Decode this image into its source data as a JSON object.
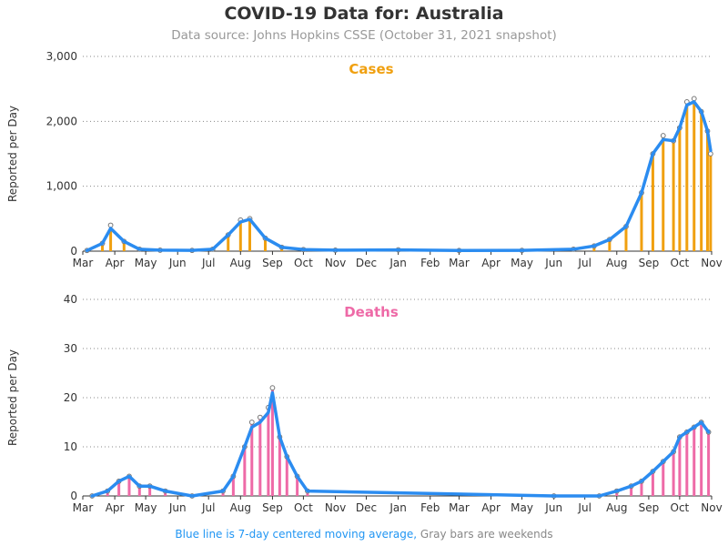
{
  "title": "COVID-19 Data for: Australia",
  "subtitle": "Data source: Johns Hopkins CSSE (October 31, 2021 snapshot)",
  "footer": {
    "blue_text": "Blue line is 7-day centered moving average,",
    "gray_text": " Gray bars are weekends"
  },
  "colors": {
    "cases": "#f0a010",
    "deaths": "#ee6aa7",
    "average": "#2b8cf0",
    "weekend": "#999999"
  },
  "chart_data": [
    {
      "type": "bar",
      "title": "Cases",
      "ylabel": "Reported per Day",
      "ylim": [
        0,
        3000
      ],
      "yticks": [
        0,
        1000,
        2000,
        3000
      ],
      "ytick_labels": [
        "0",
        "1,000",
        "2,000",
        "3,000"
      ],
      "xticks": [
        "Mar",
        "Apr",
        "May",
        "Jun",
        "Jul",
        "Aug",
        "Sep",
        "Oct",
        "Nov",
        "Dec",
        "Jan",
        "Feb",
        "Mar",
        "Apr",
        "May",
        "Jun",
        "Jul",
        "Aug",
        "Sep",
        "Oct",
        "Nov"
      ],
      "grid": "horizontal dotted",
      "series": [
        {
          "name": "Daily",
          "x": [
            "2020-03-05",
            "2020-03-20",
            "2020-03-28",
            "2020-04-10",
            "2020-04-25",
            "2020-05-15",
            "2020-06-15",
            "2020-07-05",
            "2020-07-20",
            "2020-08-01",
            "2020-08-10",
            "2020-08-25",
            "2020-09-10",
            "2020-10-01",
            "2020-11-01",
            "2021-01-01",
            "2021-03-01",
            "2021-05-01",
            "2021-06-20",
            "2021-07-10",
            "2021-07-25",
            "2021-08-10",
            "2021-08-25",
            "2021-09-05",
            "2021-09-15",
            "2021-09-25",
            "2021-10-01",
            "2021-10-08",
            "2021-10-15",
            "2021-10-22",
            "2021-10-28",
            "2021-10-31"
          ],
          "values": [
            10,
            120,
            400,
            150,
            30,
            15,
            12,
            30,
            250,
            480,
            500,
            200,
            60,
            25,
            15,
            20,
            10,
            12,
            30,
            80,
            180,
            380,
            900,
            1500,
            1780,
            1700,
            1900,
            2300,
            2350,
            2150,
            1850,
            1500
          ]
        },
        {
          "name": "7-day average",
          "x": [
            "2020-03-05",
            "2020-03-20",
            "2020-03-28",
            "2020-04-10",
            "2020-04-25",
            "2020-05-15",
            "2020-06-15",
            "2020-07-05",
            "2020-07-20",
            "2020-08-01",
            "2020-08-10",
            "2020-08-25",
            "2020-09-10",
            "2020-10-01",
            "2020-11-01",
            "2021-01-01",
            "2021-03-01",
            "2021-05-01",
            "2021-06-20",
            "2021-07-10",
            "2021-07-25",
            "2021-08-10",
            "2021-08-25",
            "2021-09-05",
            "2021-09-15",
            "2021-09-25",
            "2021-10-01",
            "2021-10-08",
            "2021-10-15",
            "2021-10-22",
            "2021-10-28",
            "2021-10-31"
          ],
          "values": [
            10,
            120,
            350,
            150,
            30,
            15,
            12,
            30,
            250,
            450,
            490,
            200,
            60,
            25,
            15,
            20,
            10,
            12,
            30,
            80,
            180,
            380,
            900,
            1500,
            1720,
            1700,
            1900,
            2250,
            2300,
            2150,
            1850,
            1550
          ]
        }
      ]
    },
    {
      "type": "bar",
      "title": "Deaths",
      "ylabel": "Reported per Day",
      "ylim": [
        0,
        40
      ],
      "yticks": [
        0,
        10,
        20,
        30,
        40
      ],
      "ytick_labels": [
        "0",
        "10",
        "20",
        "30",
        "40"
      ],
      "xticks": [
        "Mar",
        "Apr",
        "May",
        "Jun",
        "Jul",
        "Aug",
        "Sep",
        "Oct",
        "Nov",
        "Dec",
        "Jan",
        "Feb",
        "Mar",
        "Apr",
        "May",
        "Jun",
        "Jul",
        "Aug",
        "Sep",
        "Oct",
        "Nov"
      ],
      "grid": "horizontal dotted",
      "series": [
        {
          "name": "Daily",
          "x": [
            "2020-03-10",
            "2020-03-25",
            "2020-04-05",
            "2020-04-15",
            "2020-04-25",
            "2020-05-05",
            "2020-05-20",
            "2020-06-15",
            "2020-07-15",
            "2020-07-25",
            "2020-08-05",
            "2020-08-12",
            "2020-08-20",
            "2020-08-28",
            "2020-09-01",
            "2020-09-08",
            "2020-09-15",
            "2020-09-25",
            "2020-10-05",
            "2021-06-01",
            "2021-07-15",
            "2021-08-01",
            "2021-08-15",
            "2021-08-25",
            "2021-09-05",
            "2021-09-15",
            "2021-09-25",
            "2021-10-01",
            "2021-10-08",
            "2021-10-15",
            "2021-10-22",
            "2021-10-29"
          ],
          "values": [
            0,
            1,
            3,
            4,
            2,
            2,
            1,
            0,
            1,
            4,
            10,
            15,
            16,
            18,
            22,
            12,
            8,
            4,
            1,
            0,
            0,
            1,
            2,
            3,
            5,
            7,
            9,
            12,
            13,
            14,
            15,
            13
          ]
        },
        {
          "name": "7-day average",
          "x": [
            "2020-03-10",
            "2020-03-25",
            "2020-04-05",
            "2020-04-15",
            "2020-04-25",
            "2020-05-05",
            "2020-05-20",
            "2020-06-15",
            "2020-07-15",
            "2020-07-25",
            "2020-08-05",
            "2020-08-12",
            "2020-08-20",
            "2020-08-28",
            "2020-09-01",
            "2020-09-08",
            "2020-09-15",
            "2020-09-25",
            "2020-10-05",
            "2021-06-01",
            "2021-07-15",
            "2021-08-01",
            "2021-08-15",
            "2021-08-25",
            "2021-09-05",
            "2021-09-15",
            "2021-09-25",
            "2021-10-01",
            "2021-10-08",
            "2021-10-15",
            "2021-10-22",
            "2021-10-29"
          ],
          "values": [
            0,
            1,
            3,
            4,
            2,
            2,
            1,
            0,
            1,
            4,
            10,
            14,
            15,
            17,
            21,
            12,
            8,
            4,
            1,
            0,
            0,
            1,
            2,
            3,
            5,
            7,
            9,
            12,
            13,
            14,
            15,
            13
          ]
        }
      ]
    }
  ]
}
